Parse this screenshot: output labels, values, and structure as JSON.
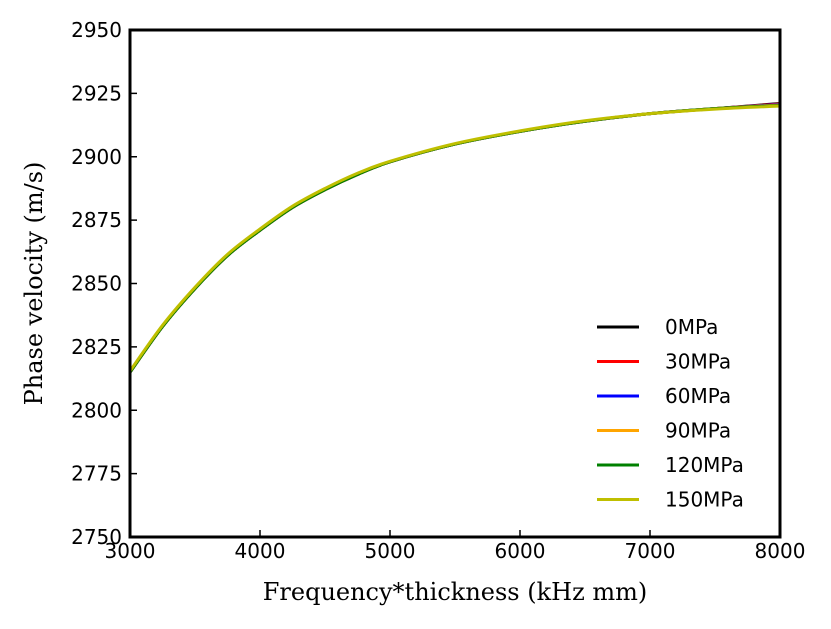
{
  "chart_data": {
    "type": "line",
    "title": "",
    "xlabel": "Frequency*thickness (kHz mm)",
    "ylabel": "Phase velocity (m/s)",
    "xlim": [
      3000,
      8000
    ],
    "ylim": [
      2750,
      2950
    ],
    "xticks": [
      3000,
      4000,
      5000,
      6000,
      7000,
      8000
    ],
    "yticks": [
      2750,
      2775,
      2800,
      2825,
      2850,
      2875,
      2900,
      2925,
      2950
    ],
    "grid": false,
    "legend_position": "lower-right",
    "x": [
      3000,
      3250,
      3500,
      3750,
      4000,
      4250,
      4500,
      4750,
      5000,
      5500,
      6000,
      6500,
      7000,
      7500,
      8000
    ],
    "series": [
      {
        "name": "0MPa",
        "color": "#000000",
        "values": [
          2815,
          2833,
          2848,
          2861,
          2871,
          2880,
          2887,
          2893,
          2898,
          2905,
          2910,
          2914,
          2917,
          2919,
          2921
        ]
      },
      {
        "name": "30MPa",
        "color": "#ff0000",
        "values": [
          2815,
          2833,
          2848,
          2861,
          2871,
          2880,
          2887,
          2893,
          2898,
          2905,
          2910,
          2914,
          2917,
          2919,
          2920.8
        ]
      },
      {
        "name": "60MPa",
        "color": "#0000ff",
        "values": [
          2815,
          2833,
          2848,
          2861,
          2871,
          2880,
          2887,
          2893,
          2898,
          2905,
          2910,
          2914,
          2917,
          2919,
          2920.6
        ]
      },
      {
        "name": "90MPa",
        "color": "#ffa500",
        "values": [
          2815,
          2833,
          2848,
          2861,
          2871,
          2880,
          2887,
          2893,
          2898,
          2905,
          2910,
          2914,
          2917,
          2919,
          2920.4
        ]
      },
      {
        "name": "120MPa",
        "color": "#008000",
        "values": [
          2815,
          2833,
          2848,
          2861,
          2871,
          2880,
          2887,
          2893,
          2898,
          2905,
          2910,
          2914,
          2917,
          2919,
          2920.2
        ]
      },
      {
        "name": "150MPa",
        "color": "#bfbf00",
        "values": [
          2815.5,
          2833.5,
          2848.5,
          2861.5,
          2871.5,
          2880.5,
          2887.5,
          2893.5,
          2898.2,
          2905.2,
          2910.2,
          2914.2,
          2917,
          2918.8,
          2920
        ]
      }
    ]
  }
}
